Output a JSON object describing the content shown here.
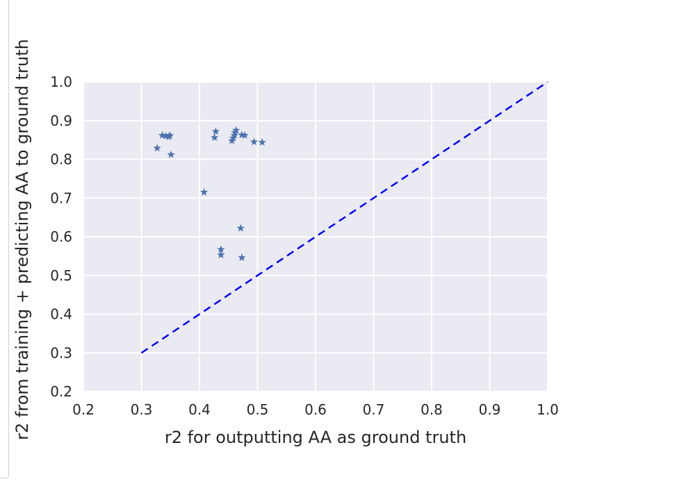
{
  "chart_data": {
    "type": "scatter",
    "title": "",
    "xlabel": "r2 for outputting AA as ground truth",
    "ylabel": "r2 from training + predicting AA to ground truth",
    "xlim": [
      0.2,
      1.0
    ],
    "ylim": [
      0.2,
      1.0
    ],
    "xticks": [
      "0.2",
      "0.3",
      "0.4",
      "0.5",
      "0.6",
      "0.7",
      "0.8",
      "0.9",
      "1.0"
    ],
    "yticks": [
      "0.2",
      "0.3",
      "0.4",
      "0.5",
      "0.6",
      "0.7",
      "0.8",
      "0.9",
      "1.0"
    ],
    "grid": true,
    "marker": "star",
    "colors": {
      "background": "#eaeaf2",
      "grid": "#ffffff",
      "points": "#4c72b0",
      "reference_line": "#0000ff",
      "text": "#262626"
    },
    "points": [
      {
        "x": 0.327,
        "y": 0.829
      },
      {
        "x": 0.336,
        "y": 0.862
      },
      {
        "x": 0.342,
        "y": 0.86
      },
      {
        "x": 0.347,
        "y": 0.858
      },
      {
        "x": 0.349,
        "y": 0.862
      },
      {
        "x": 0.351,
        "y": 0.812
      },
      {
        "x": 0.408,
        "y": 0.715
      },
      {
        "x": 0.426,
        "y": 0.856
      },
      {
        "x": 0.428,
        "y": 0.872
      },
      {
        "x": 0.437,
        "y": 0.567
      },
      {
        "x": 0.437,
        "y": 0.553
      },
      {
        "x": 0.456,
        "y": 0.848
      },
      {
        "x": 0.458,
        "y": 0.855
      },
      {
        "x": 0.46,
        "y": 0.862
      },
      {
        "x": 0.461,
        "y": 0.869
      },
      {
        "x": 0.463,
        "y": 0.875
      },
      {
        "x": 0.471,
        "y": 0.622
      },
      {
        "x": 0.473,
        "y": 0.546
      },
      {
        "x": 0.473,
        "y": 0.863
      },
      {
        "x": 0.478,
        "y": 0.862
      },
      {
        "x": 0.494,
        "y": 0.845
      },
      {
        "x": 0.508,
        "y": 0.844
      }
    ],
    "reference_line": {
      "x": [
        0.3,
        1.0
      ],
      "y": [
        0.3,
        1.0
      ],
      "style": "dashed"
    }
  }
}
